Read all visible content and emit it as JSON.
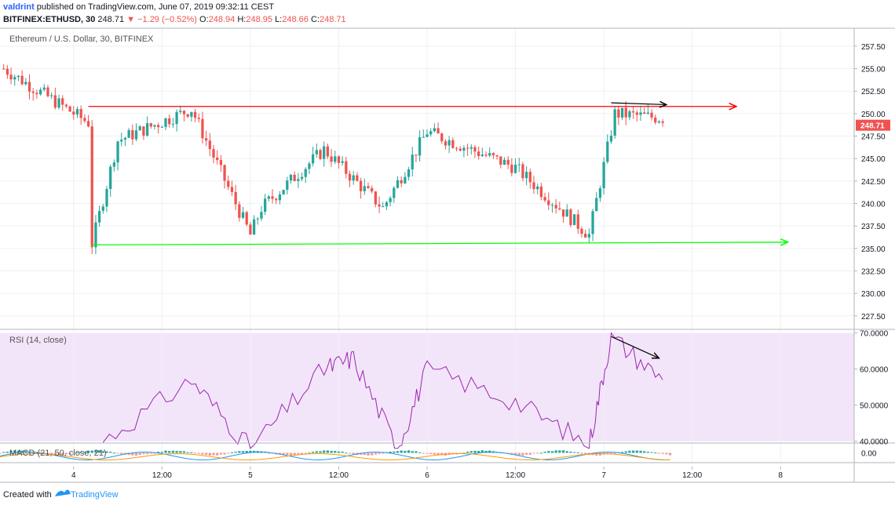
{
  "header": {
    "publisher": "valdrint",
    "published_text": "published on TradingView.com, June 07, 2019 09:32:11 CEST",
    "symbol": "BITFINEX:ETHUSD, 30",
    "last": "248.71",
    "change_arrow": "▼",
    "change": "−1.29 (−0.52%)",
    "o_label": "O:",
    "o": "248.94",
    "h_label": "H:",
    "h": "248.95",
    "l_label": "L:",
    "l": "248.66",
    "c_label": "C:",
    "c": "248.71"
  },
  "footer": {
    "created_with": "Created with",
    "brand": "TradingView"
  },
  "chart_data": [
    {
      "type": "candlestick",
      "title": "Ethereum / U.S. Dollar, 30, BITFINEX",
      "ylim": [
        226,
        259.5
      ],
      "y_ticks": [
        "227.50",
        "230.00",
        "232.50",
        "235.00",
        "237.50",
        "240.00",
        "242.50",
        "245.00",
        "247.50",
        "250.00",
        "252.50",
        "255.00",
        "257.50"
      ],
      "x_ticks": [
        "4",
        "12:00",
        "5",
        "12:00",
        "6",
        "12:00",
        "7",
        "12:00",
        "8"
      ],
      "last_price_label": "248.71",
      "colors": {
        "up": "#26a69a",
        "down": "#ef5350"
      },
      "key_points": [
        {
          "t": "Jun 3 14:30",
          "price": 255
        },
        {
          "t": "Jun 4 02:00",
          "price": 249
        },
        {
          "t": "Jun 4 02:30",
          "price": 235.5
        },
        {
          "t": "Jun 4 06:00",
          "price": 247
        },
        {
          "t": "Jun 4 16:00",
          "price": 250.5
        },
        {
          "t": "Jun 5 00:00",
          "price": 236.5
        },
        {
          "t": "Jun 5 01:30",
          "price": 239.5
        },
        {
          "t": "Jun 5 10:00",
          "price": 246
        },
        {
          "t": "Jun 5 18:00",
          "price": 239.5
        },
        {
          "t": "Jun 6 00:00",
          "price": 248
        },
        {
          "t": "Jun 6 12:00",
          "price": 244
        },
        {
          "t": "Jun 6 22:00",
          "price": 236.5
        },
        {
          "t": "Jun 7 01:30",
          "price": 250
        },
        {
          "t": "Jun 7 08:00",
          "price": 249.5
        }
      ],
      "resistance_line": {
        "color": "#ff0000",
        "price_start": 250.8,
        "price_end": 250.8
      },
      "support_line": {
        "color": "#00ff00",
        "price_start": 235.4,
        "price_end": 235.7
      },
      "divergence_arrow": {
        "color": "#000000",
        "from_price": 251.2,
        "to_price": 251.0
      }
    },
    {
      "type": "line",
      "title": "RSI (14, close)",
      "ylim": [
        39.5,
        71
      ],
      "y_ticks": [
        "40.0000",
        "50.0000",
        "60.0000",
        "70.0000"
      ],
      "color": "#9c27b0",
      "band_color": "#f3e5f9",
      "key_points": [
        {
          "t": "Jun 4 04:00",
          "y": 40
        },
        {
          "t": "Jun 4 16:00",
          "y": 57
        },
        {
          "t": "Jun 5 00:00",
          "y": 38
        },
        {
          "t": "Jun 5 10:00",
          "y": 60
        },
        {
          "t": "Jun 5 14:00",
          "y": 63
        },
        {
          "t": "Jun 5 20:00",
          "y": 38
        },
        {
          "t": "Jun 6 00:00",
          "y": 60
        },
        {
          "t": "Jun 6 12:00",
          "y": 51
        },
        {
          "t": "Jun 6 22:00",
          "y": 39
        },
        {
          "t": "Jun 7 01:00",
          "y": 69
        },
        {
          "t": "Jun 7 08:00",
          "y": 57
        }
      ],
      "divergence_arrow": {
        "color": "#000000",
        "from_y": 69,
        "to_y": 63
      }
    },
    {
      "type": "histogram",
      "title": "MACD (21, 50, close, 21)",
      "y_ticks": [
        "0.00"
      ],
      "colors": {
        "histogram_up": "#26a69a",
        "histogram_down": "#ef9a9a",
        "macd": "#2196f3",
        "signal": "#ff9800"
      }
    }
  ]
}
